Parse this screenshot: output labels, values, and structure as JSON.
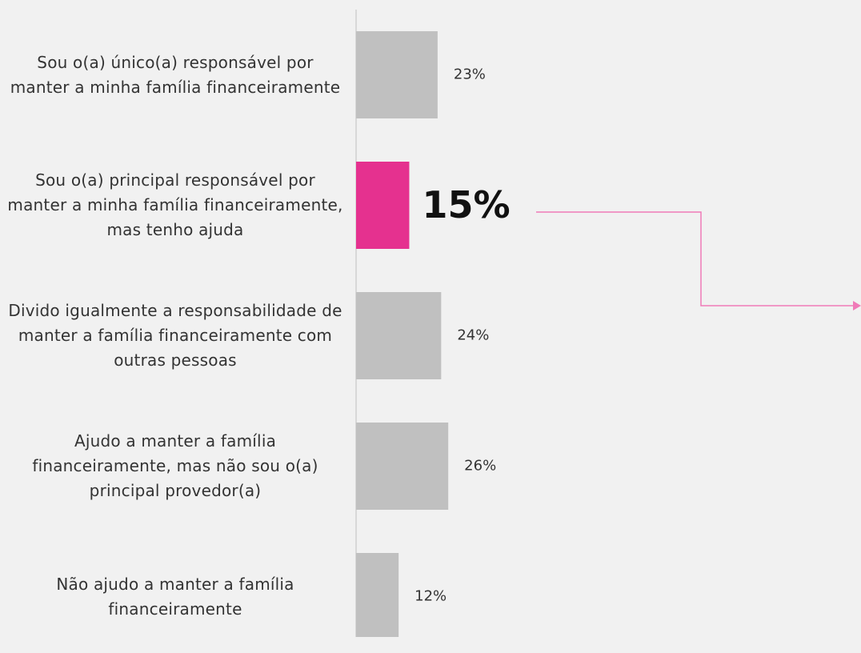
{
  "chart_data": {
    "type": "barh",
    "categories": [
      "Sou o(a) único(a) responsável por manter a minha família financeiramente",
      "Sou o(a) principal responsável por manter a minha família financeiramente, mas tenho ajuda",
      "Divido igualmente a responsabilidade de manter a família financeiramente com outras pessoas",
      "Ajudo a manter a família financeiramente, mas não sou o(a) principal provedor(a)",
      "Não ajudo a manter a família financeiramente"
    ],
    "values": [
      23,
      15,
      24,
      26,
      12
    ],
    "value_labels": [
      "23%",
      "15%",
      "24%",
      "26%",
      "12%"
    ],
    "xlim": [
      0,
      100
    ],
    "color": "#c0c0c0",
    "highlight_color": "#e5318f",
    "highlight_index": 1
  }
}
